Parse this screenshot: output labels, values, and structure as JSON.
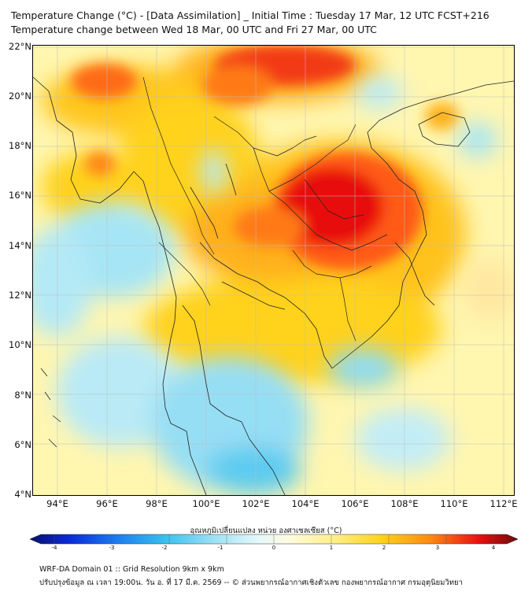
{
  "title": {
    "line1": "Temperature Change (°C) - [Data Assimilation] _ Initial Time : Tuesday 17 Mar, 12 UTC FCST+216",
    "line2": "Temperature change between Wed 18 Mar, 00 UTC and Fri 27 Mar, 00 UTC"
  },
  "map": {
    "lat_ticks": [
      {
        "value": 22,
        "label": "22°N"
      },
      {
        "value": 20,
        "label": "20°N"
      },
      {
        "value": 18,
        "label": "18°N"
      },
      {
        "value": 16,
        "label": "16°N"
      },
      {
        "value": 14,
        "label": "14°N"
      },
      {
        "value": 12,
        "label": "12°N"
      },
      {
        "value": 10,
        "label": "10°N"
      },
      {
        "value": 8,
        "label": "8°N"
      },
      {
        "value": 6,
        "label": "6°N"
      },
      {
        "value": 4,
        "label": "4°N"
      }
    ],
    "lon_ticks": [
      {
        "value": 94,
        "label": "94°E"
      },
      {
        "value": 96,
        "label": "96°E"
      },
      {
        "value": 98,
        "label": "98°E"
      },
      {
        "value": 100,
        "label": "100°E"
      },
      {
        "value": 102,
        "label": "102°E"
      },
      {
        "value": 104,
        "label": "104°E"
      },
      {
        "value": 106,
        "label": "106°E"
      },
      {
        "value": 108,
        "label": "108°E"
      },
      {
        "value": 110,
        "label": "110°E"
      },
      {
        "value": 112,
        "label": "112°E"
      }
    ],
    "extent": {
      "lon_min": 93,
      "lon_max": 112.4,
      "lat_min": 4,
      "lat_max": 22.2
    },
    "colors": {
      "warm_strong": "#e81010",
      "warm": "#ff7a10",
      "mild": "#ffd21c",
      "pale": "#fff6b0",
      "cool": "#9fe3f5",
      "cold": "#3cc0ef"
    }
  },
  "colorbar": {
    "title": "อุณหภูมิเปลี่ยนแปลง หน่วย องศาเซลเซียส (°C)",
    "min": -4,
    "max": 4,
    "ticks": [
      {
        "value": -4,
        "label": "-4"
      },
      {
        "value": -3,
        "label": "-3"
      },
      {
        "value": -2,
        "label": "-2"
      },
      {
        "value": -1,
        "label": "-1"
      },
      {
        "value": 0,
        "label": "0"
      },
      {
        "value": 1,
        "label": "1"
      },
      {
        "value": 2,
        "label": "2"
      },
      {
        "value": 3,
        "label": "3"
      },
      {
        "value": 4,
        "label": "4"
      }
    ]
  },
  "footer": {
    "line1": "WRF-DA Domain 01 :: Grid Resolution 9km x 9km",
    "line2": "ปรับปรุงข้อมูล ณ เวลา 19:00น. วัน อ. ที่ 17 มี.ค. 2569 -- © ส่วนพยากรณ์อากาศเชิงตัวเลข กองพยากรณ์อากาศ กรมอุตุนิยมวิทยา"
  }
}
